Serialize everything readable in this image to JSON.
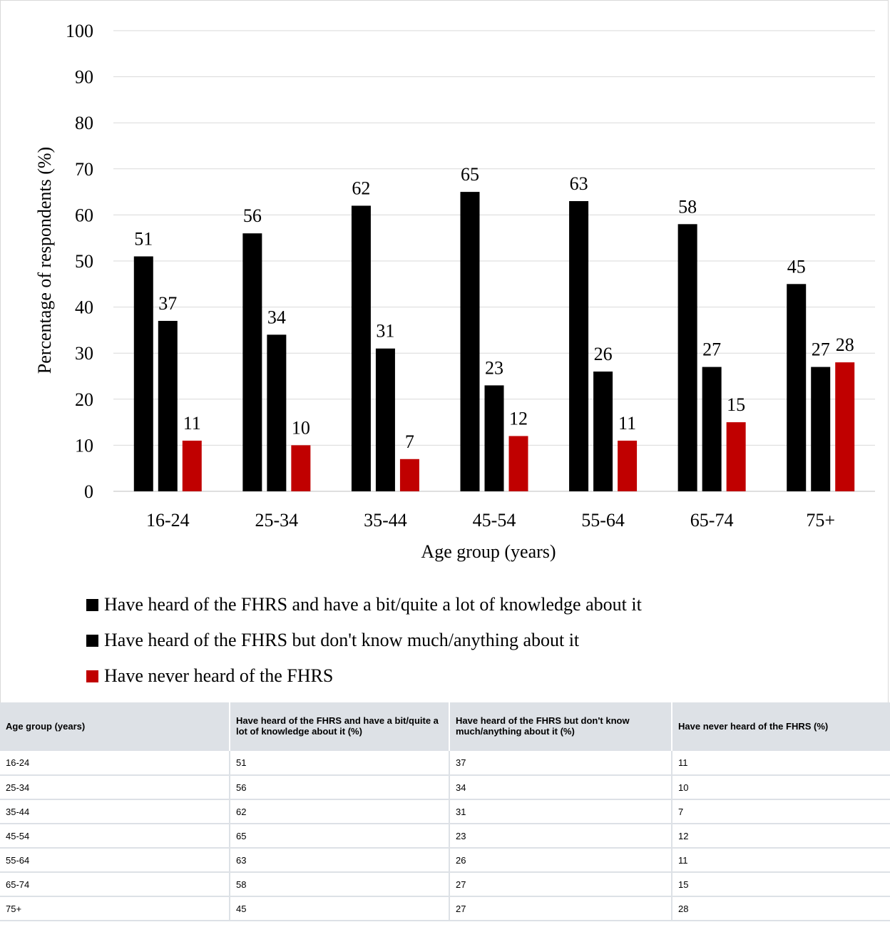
{
  "chart_data": {
    "type": "bar",
    "categories": [
      "16-24",
      "25-34",
      "35-44",
      "45-54",
      "55-64",
      "65-74",
      "75+"
    ],
    "series": [
      {
        "name": "Have heard of the FHRS and have a bit/quite a lot of knowledge about it",
        "color": "#000000",
        "values": [
          51,
          56,
          62,
          65,
          63,
          58,
          45
        ]
      },
      {
        "name": "Have heard of the FHRS but don't know much/anything about it",
        "color": "#000000",
        "values": [
          37,
          34,
          31,
          23,
          26,
          27,
          27
        ]
      },
      {
        "name": "Have never heard of the FHRS",
        "color": "#c00000",
        "values": [
          11,
          10,
          7,
          12,
          11,
          15,
          28
        ]
      }
    ],
    "xlabel": "Age group (years)",
    "ylabel": "Percentage of respondents (%)",
    "ylim": [
      0,
      100
    ],
    "yticks": [
      0,
      10,
      20,
      30,
      40,
      50,
      60,
      70,
      80,
      90,
      100
    ],
    "grid": true,
    "legend_position": "bottom"
  },
  "table": {
    "headers": [
      "Age group (years)",
      "Have heard of the FHRS and have a bit/quite a lot of knowledge about it (%)",
      "Have heard of the FHRS but don't know much/anything about it (%)",
      "Have never heard of the FHRS (%)"
    ],
    "rows": [
      [
        "16-24",
        "51",
        "37",
        "11"
      ],
      [
        "25-34",
        "56",
        "34",
        "10"
      ],
      [
        "35-44",
        "62",
        "31",
        "7"
      ],
      [
        "45-54",
        "65",
        "23",
        "12"
      ],
      [
        "55-64",
        "63",
        "26",
        "11"
      ],
      [
        "65-74",
        "58",
        "27",
        "15"
      ],
      [
        "75+",
        "45",
        "27",
        "28"
      ]
    ]
  }
}
